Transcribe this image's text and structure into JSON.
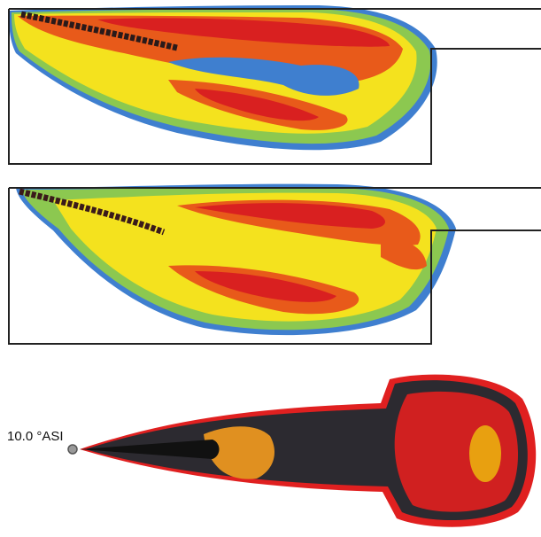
{
  "label": "10.0 °ASI"
}
